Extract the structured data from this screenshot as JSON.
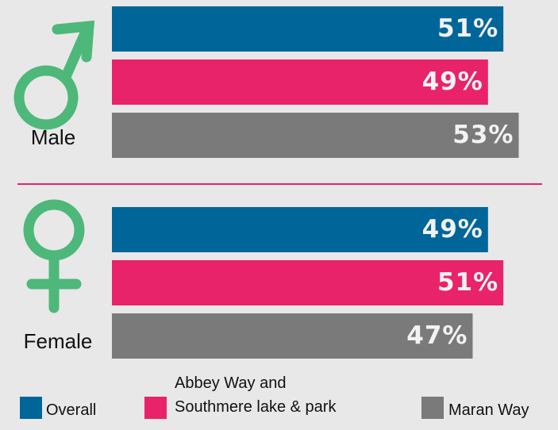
{
  "chart_data": {
    "type": "bar",
    "orientation": "horizontal",
    "categories": [
      "Male",
      "Female"
    ],
    "series": [
      {
        "name": "Overall",
        "color": "#006699",
        "values": [
          51,
          49
        ],
        "value_labels": [
          "51%",
          "49%"
        ]
      },
      {
        "name": "Abbey Way and Southmere lake & park",
        "color": "#e8236a",
        "values": [
          49,
          51
        ],
        "value_labels": [
          "49%",
          "51%"
        ]
      },
      {
        "name": "Maran Way",
        "color": "#7a7a7a",
        "values": [
          53,
          47
        ],
        "value_labels": [
          "53%",
          "47%"
        ]
      }
    ]
  }
}
